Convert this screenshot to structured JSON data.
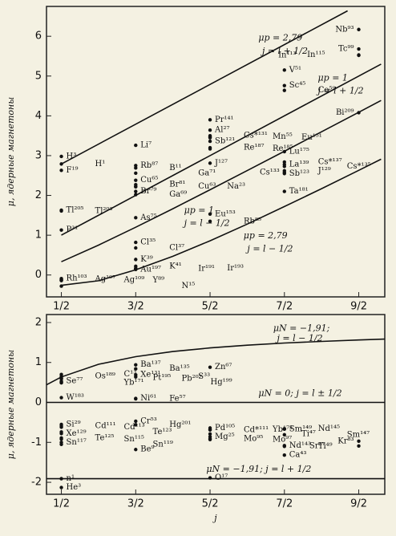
{
  "chart_data": [
    {
      "type": "scatter",
      "y_label": "μ, ядерные магнетоны",
      "xlim": [
        0.3,
        4.85
      ],
      "ylim": [
        -0.55,
        6.75
      ],
      "xticks": [
        {
          "value": 0.5,
          "label": "1/2"
        },
        {
          "value": 1.5,
          "label": "3/2"
        },
        {
          "value": 2.5,
          "label": "5/2"
        },
        {
          "value": 3.5,
          "label": "7/2"
        },
        {
          "value": 4.5,
          "label": "9/2"
        }
      ],
      "yticks": [
        0,
        1,
        2,
        3,
        4,
        5,
        6
      ],
      "color": "#111111",
      "curves": [
        {
          "x": [
            0.5,
            4.35
          ],
          "values": [
            2.79,
            6.64
          ]
        },
        {
          "x": [
            0.5,
            4.8
          ],
          "values": [
            1,
            5.3
          ]
        },
        {
          "x": [
            0.5,
            1,
            1.5,
            2,
            2.5,
            3,
            3.5,
            4,
            4.5,
            4.8
          ],
          "values": [
            0.333,
            0.75,
            1.2,
            1.667,
            2.143,
            2.625,
            3.111,
            3.6,
            4.091,
            4.386
          ]
        },
        {
          "x": [
            0.5,
            1,
            1.5,
            2,
            2.5,
            3,
            3.5,
            4,
            4.5,
            4.8
          ],
          "values": [
            -0.26,
            -0.145,
            0.13,
            0.47,
            0.86,
            1.28,
            1.72,
            2.17,
            2.63,
            2.91
          ]
        }
      ],
      "annotations": [
        "μp = 2,79",
        "j = l + 1/2",
        "μp = 1",
        "j = l + 1/2",
        "μp = 1",
        "j = l − 1/2",
        "μp = 2,79",
        "j = l − 1/2"
      ],
      "points": [
        {
          "label": "H³",
          "x": 0.5,
          "y": 2.98
        },
        {
          "label": "H¹",
          "x": 0.5,
          "y": 2.79
        },
        {
          "label": "F¹⁹",
          "x": 0.5,
          "y": 2.63
        },
        {
          "label": "Tl²⁰⁵",
          "x": 0.5,
          "y": 1.63
        },
        {
          "label": "Tl²⁰³",
          "x": 0.5,
          "y": 1.61
        },
        {
          "label": "P³¹",
          "x": 0.5,
          "y": 1.13
        },
        {
          "label": "Rh¹⁰³",
          "x": 0.5,
          "y": -0.09
        },
        {
          "label": "Ag¹⁰⁷",
          "x": 0.5,
          "y": -0.11
        },
        {
          "label": "Ag¹⁰⁹",
          "x": 0.5,
          "y": -0.13
        },
        {
          "label": "Y⁸⁹",
          "x": 0.5,
          "y": -0.14
        },
        {
          "label": "N¹⁵",
          "x": 0.5,
          "y": -0.28
        },
        {
          "label": "Li⁷",
          "x": 1.5,
          "y": 3.26
        },
        {
          "label": "Rb⁸⁷",
          "x": 1.5,
          "y": 2.75
        },
        {
          "label": "B¹¹",
          "x": 1.5,
          "y": 2.69
        },
        {
          "label": "Ga⁷¹",
          "x": 1.5,
          "y": 2.56
        },
        {
          "label": "Cu⁶⁵",
          "x": 1.5,
          "y": 2.38
        },
        {
          "label": "Br⁸¹",
          "x": 1.5,
          "y": 2.27
        },
        {
          "label": "Cu⁶³",
          "x": 1.5,
          "y": 2.22
        },
        {
          "label": "Na²³",
          "x": 1.5,
          "y": 2.22
        },
        {
          "label": "Br⁷⁹",
          "x": 1.5,
          "y": 2.1
        },
        {
          "label": "Ga⁶⁹",
          "x": 1.5,
          "y": 2.02
        },
        {
          "label": "As⁷⁵",
          "x": 1.5,
          "y": 1.44
        },
        {
          "label": "Cl³⁵",
          "x": 1.5,
          "y": 0.82
        },
        {
          "label": "Cl³⁷",
          "x": 1.5,
          "y": 0.68
        },
        {
          "label": "K³⁹",
          "x": 1.5,
          "y": 0.39
        },
        {
          "label": "K⁴¹",
          "x": 1.5,
          "y": 0.22
        },
        {
          "label": "Au¹⁹⁷",
          "x": 1.5,
          "y": 0.14
        },
        {
          "label": "Ir¹⁹¹",
          "x": 1.5,
          "y": 0.16
        },
        {
          "label": "Ir¹⁹³",
          "x": 1.5,
          "y": 0.17
        },
        {
          "label": "Pr¹⁴¹",
          "x": 2.5,
          "y": 3.9
        },
        {
          "label": "Al²⁷",
          "x": 2.5,
          "y": 3.64
        },
        {
          "label": "Cs*¹³¹",
          "x": 2.5,
          "y": 3.5
        },
        {
          "label": "Mn⁵⁵",
          "x": 2.5,
          "y": 3.47
        },
        {
          "label": "Eu¹⁵¹",
          "x": 2.5,
          "y": 3.45
        },
        {
          "label": "Sb¹²¹",
          "x": 2.5,
          "y": 3.36
        },
        {
          "label": "Re¹⁸⁷",
          "x": 2.5,
          "y": 3.2
        },
        {
          "label": "Re¹⁸⁵",
          "x": 2.5,
          "y": 3.17
        },
        {
          "label": "J¹²⁷",
          "x": 2.5,
          "y": 2.81
        },
        {
          "label": "Eu¹⁵³",
          "x": 2.5,
          "y": 1.53
        },
        {
          "label": "Rb⁸⁵",
          "x": 2.5,
          "y": 1.35
        },
        {
          "label": "V⁵¹",
          "x": 3.5,
          "y": 5.15
        },
        {
          "label": "Sc⁴⁵",
          "x": 3.5,
          "y": 4.76
        },
        {
          "label": "Co⁵⁹",
          "x": 3.5,
          "y": 4.64
        },
        {
          "label": "Lu¹⁷⁵",
          "x": 3.5,
          "y": 3.1
        },
        {
          "label": "La¹³⁹",
          "x": 3.5,
          "y": 2.78
        },
        {
          "label": "Cs*¹³⁷",
          "x": 3.5,
          "y": 2.84
        },
        {
          "label": "Cs*¹³⁵",
          "x": 3.5,
          "y": 2.73
        },
        {
          "label": "J¹²⁹",
          "x": 3.5,
          "y": 2.62
        },
        {
          "label": "Cs¹³³",
          "x": 3.5,
          "y": 2.58
        },
        {
          "label": "Sb¹²³",
          "x": 3.5,
          "y": 2.55
        },
        {
          "label": "Ta¹⁸¹",
          "x": 3.5,
          "y": 2.1
        },
        {
          "label": "Nb⁹³",
          "x": 4.5,
          "y": 6.17
        },
        {
          "label": "Tc⁹⁹",
          "x": 4.5,
          "y": 5.68
        },
        {
          "label": "In¹¹⁵",
          "x": 4.5,
          "y": 5.53
        },
        {
          "label": "In¹¹³",
          "x": 4.5,
          "y": 5.52
        },
        {
          "label": "Bi²⁰⁹",
          "x": 4.5,
          "y": 4.08
        }
      ]
    },
    {
      "type": "scatter",
      "y_label": "μ, ядерные магнетоны",
      "x_label": "j",
      "xlim": [
        0.3,
        4.85
      ],
      "ylim": [
        -2.3,
        2.2
      ],
      "xticks": [
        {
          "value": 0.5,
          "label": "1/2"
        },
        {
          "value": 1.5,
          "label": "3/2"
        },
        {
          "value": 2.5,
          "label": "5/2"
        },
        {
          "value": 3.5,
          "label": "7/2"
        },
        {
          "value": 4.5,
          "label": "9/2"
        }
      ],
      "yticks": [
        -2,
        -1,
        0,
        1,
        2
      ],
      "color": "#111111",
      "curves": [
        {
          "x": [
            0.3,
            0.5,
            1,
            1.5,
            2,
            2.5,
            3,
            3.5,
            4,
            4.5,
            4.85
          ],
          "values": [
            0.44,
            0.637,
            0.955,
            1.146,
            1.273,
            1.364,
            1.433,
            1.486,
            1.528,
            1.563,
            1.585
          ]
        },
        {
          "x": [
            0.3,
            4.85
          ],
          "values": [
            0,
            0
          ]
        },
        {
          "x": [
            0.3,
            4.85
          ],
          "values": [
            -1.91,
            -1.91
          ]
        }
      ],
      "annotations": [
        "μN = −1,91;",
        "j = l − 1/2",
        "μN = 0; j = l ± 1/2",
        "μN = −1,91; j = l + 1/2"
      ],
      "points": [
        {
          "label": "Se⁷⁷",
          "x": 0.5,
          "y": 0.53
        },
        {
          "label": "Os¹⁸⁹",
          "x": 0.5,
          "y": 0.65
        },
        {
          "label": "C¹³",
          "x": 0.5,
          "y": 0.7
        },
        {
          "label": "Pt¹⁹⁵",
          "x": 0.5,
          "y": 0.61
        },
        {
          "label": "Pb²⁰⁷",
          "x": 0.5,
          "y": 0.59
        },
        {
          "label": "Hg¹⁹⁹",
          "x": 0.5,
          "y": 0.5
        },
        {
          "label": "Yb¹⁷¹",
          "x": 0.5,
          "y": 0.49
        },
        {
          "label": "W¹⁸³",
          "x": 0.5,
          "y": 0.12
        },
        {
          "label": "Si²⁹",
          "x": 0.5,
          "y": -0.55
        },
        {
          "label": "Cd¹¹¹",
          "x": 0.5,
          "y": -0.59
        },
        {
          "label": "Cd¹¹³",
          "x": 0.5,
          "y": -0.62
        },
        {
          "label": "Te¹²³",
          "x": 0.5,
          "y": -0.74
        },
        {
          "label": "Xe¹²⁹",
          "x": 0.5,
          "y": -0.78
        },
        {
          "label": "Te¹²⁵",
          "x": 0.5,
          "y": -0.89
        },
        {
          "label": "Sn¹¹⁵",
          "x": 0.5,
          "y": -0.92
        },
        {
          "label": "Sn¹¹⁷",
          "x": 0.5,
          "y": -1.0
        },
        {
          "label": "Sn¹¹⁹",
          "x": 0.5,
          "y": -1.05
        },
        {
          "label": "n¹",
          "x": 0.5,
          "y": -1.91
        },
        {
          "label": "He³",
          "x": 0.5,
          "y": -2.13
        },
        {
          "label": "Ba¹³⁷",
          "x": 1.5,
          "y": 0.94
        },
        {
          "label": "Ba¹³⁵",
          "x": 1.5,
          "y": 0.84
        },
        {
          "label": "Xe¹³¹",
          "x": 1.5,
          "y": 0.69
        },
        {
          "label": "S³³",
          "x": 1.5,
          "y": 0.64
        },
        {
          "label": "Ni⁶¹",
          "x": 1.5,
          "y": 0.1
        },
        {
          "label": "Fe⁵⁷",
          "x": 1.5,
          "y": 0.09
        },
        {
          "label": "Cr⁵³",
          "x": 1.5,
          "y": -0.47
        },
        {
          "label": "Hg²⁰¹",
          "x": 1.5,
          "y": -0.56
        },
        {
          "label": "Be⁹",
          "x": 1.5,
          "y": -1.18
        },
        {
          "label": "Zn⁶⁷",
          "x": 2.5,
          "y": 0.88
        },
        {
          "label": "Pd¹⁰⁵",
          "x": 2.5,
          "y": -0.64
        },
        {
          "label": "Cd*¹¹¹",
          "x": 2.5,
          "y": -0.69
        },
        {
          "label": "Yb¹⁷³",
          "x": 2.5,
          "y": -0.68
        },
        {
          "label": "Ti⁴⁷",
          "x": 2.5,
          "y": -0.79
        },
        {
          "label": "Mg²⁵",
          "x": 2.5,
          "y": -0.86
        },
        {
          "label": "Mo⁹⁵",
          "x": 2.5,
          "y": -0.91
        },
        {
          "label": "Mo⁹⁷",
          "x": 2.5,
          "y": -0.93
        },
        {
          "label": "O¹⁷",
          "x": 2.5,
          "y": -1.89
        },
        {
          "label": "Sm¹⁴⁹",
          "x": 3.5,
          "y": -0.67
        },
        {
          "label": "Nd¹⁴⁵",
          "x": 3.5,
          "y": -0.66
        },
        {
          "label": "Sm¹⁴⁷",
          "x": 3.5,
          "y": -0.81
        },
        {
          "label": "Nd¹⁴³",
          "x": 3.5,
          "y": -1.08
        },
        {
          "label": "Ti⁴⁹",
          "x": 3.5,
          "y": -1.1
        },
        {
          "label": "Ca⁴³",
          "x": 3.5,
          "y": -1.32
        },
        {
          "label": "Kr⁸³",
          "x": 4.5,
          "y": -0.97
        },
        {
          "label": "Sr⁸⁷",
          "x": 4.5,
          "y": -1.09
        }
      ]
    }
  ]
}
